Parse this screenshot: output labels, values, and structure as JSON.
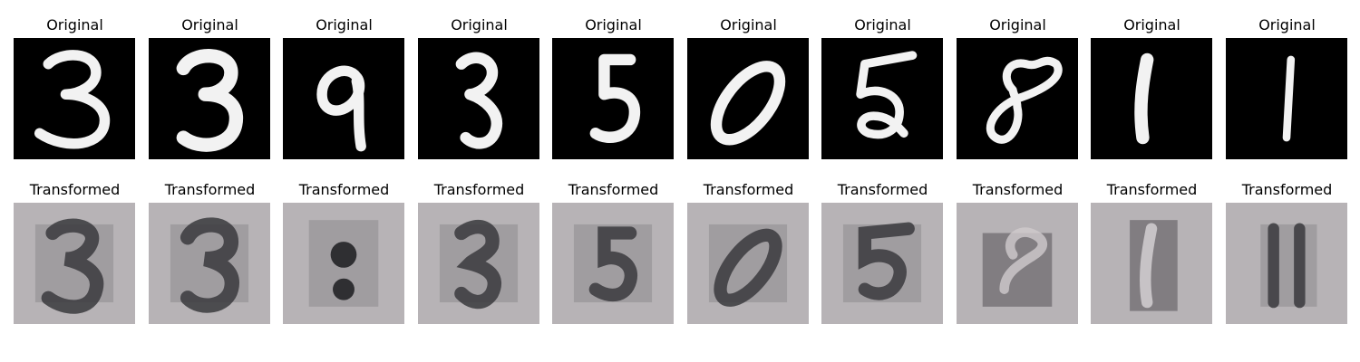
{
  "figure": {
    "row_titles": {
      "original": "Original",
      "transformed": "Transformed"
    },
    "samples": [
      {
        "digit": "3"
      },
      {
        "digit": "3"
      },
      {
        "digit": "9"
      },
      {
        "digit": "3"
      },
      {
        "digit": "5"
      },
      {
        "digit": "0"
      },
      {
        "digit": "5"
      },
      {
        "digit": "8"
      },
      {
        "digit": "1"
      },
      {
        "digit": "1"
      }
    ],
    "colors": {
      "original_background": "#000000",
      "original_stroke": "#f2f2f2",
      "transformed_background": "#b7b3b6",
      "transformed_stroke": "#3a3a3d"
    }
  }
}
